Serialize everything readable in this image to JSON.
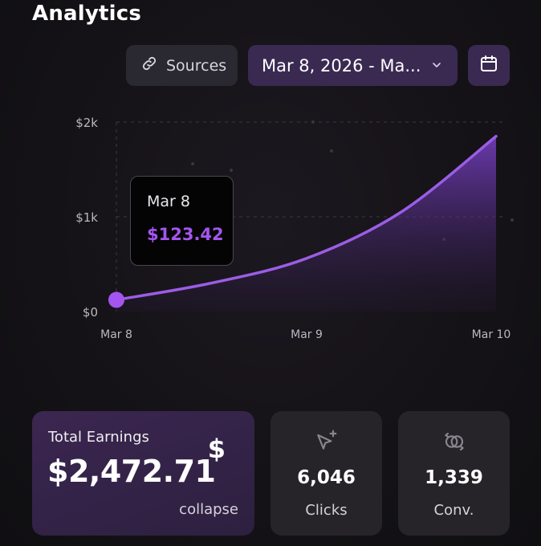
{
  "header": {
    "title": "Analytics"
  },
  "toolbar": {
    "sources_label": "Sources",
    "date_range": "Mar 8, 2026 - Ma...",
    "icons": {
      "sources": "link-icon",
      "date": "chevron-down-icon",
      "calendar": "calendar-icon"
    }
  },
  "chart_data": {
    "type": "area",
    "x": [
      "Mar 8",
      "Mar 9",
      "Mar 10"
    ],
    "y_ticks": [
      "$2k",
      "$1k",
      "$0"
    ],
    "ylim": [
      0,
      2000
    ],
    "series": [
      {
        "name": "Earnings",
        "x": [
          0,
          0.25,
          0.5,
          0.75,
          1.0
        ],
        "values": [
          123.42,
          300,
          560,
          1050,
          1850
        ]
      }
    ],
    "color": "#9b5de5",
    "tooltip": {
      "date": "Mar 8",
      "value": "$123.42"
    }
  },
  "cards": {
    "earnings": {
      "label": "Total Earnings",
      "value": "$2,472.71",
      "symbol": "$",
      "action": "collapse"
    },
    "clicks": {
      "value": "6,046",
      "label": "Clicks",
      "icon": "cursor-plus-icon"
    },
    "conversions": {
      "value": "1,339",
      "label": "Conv.",
      "icon": "conversion-icon"
    }
  },
  "colors": {
    "accent": "#a455f0",
    "card_purple": "#3b2650",
    "card_gray": "#262428"
  }
}
